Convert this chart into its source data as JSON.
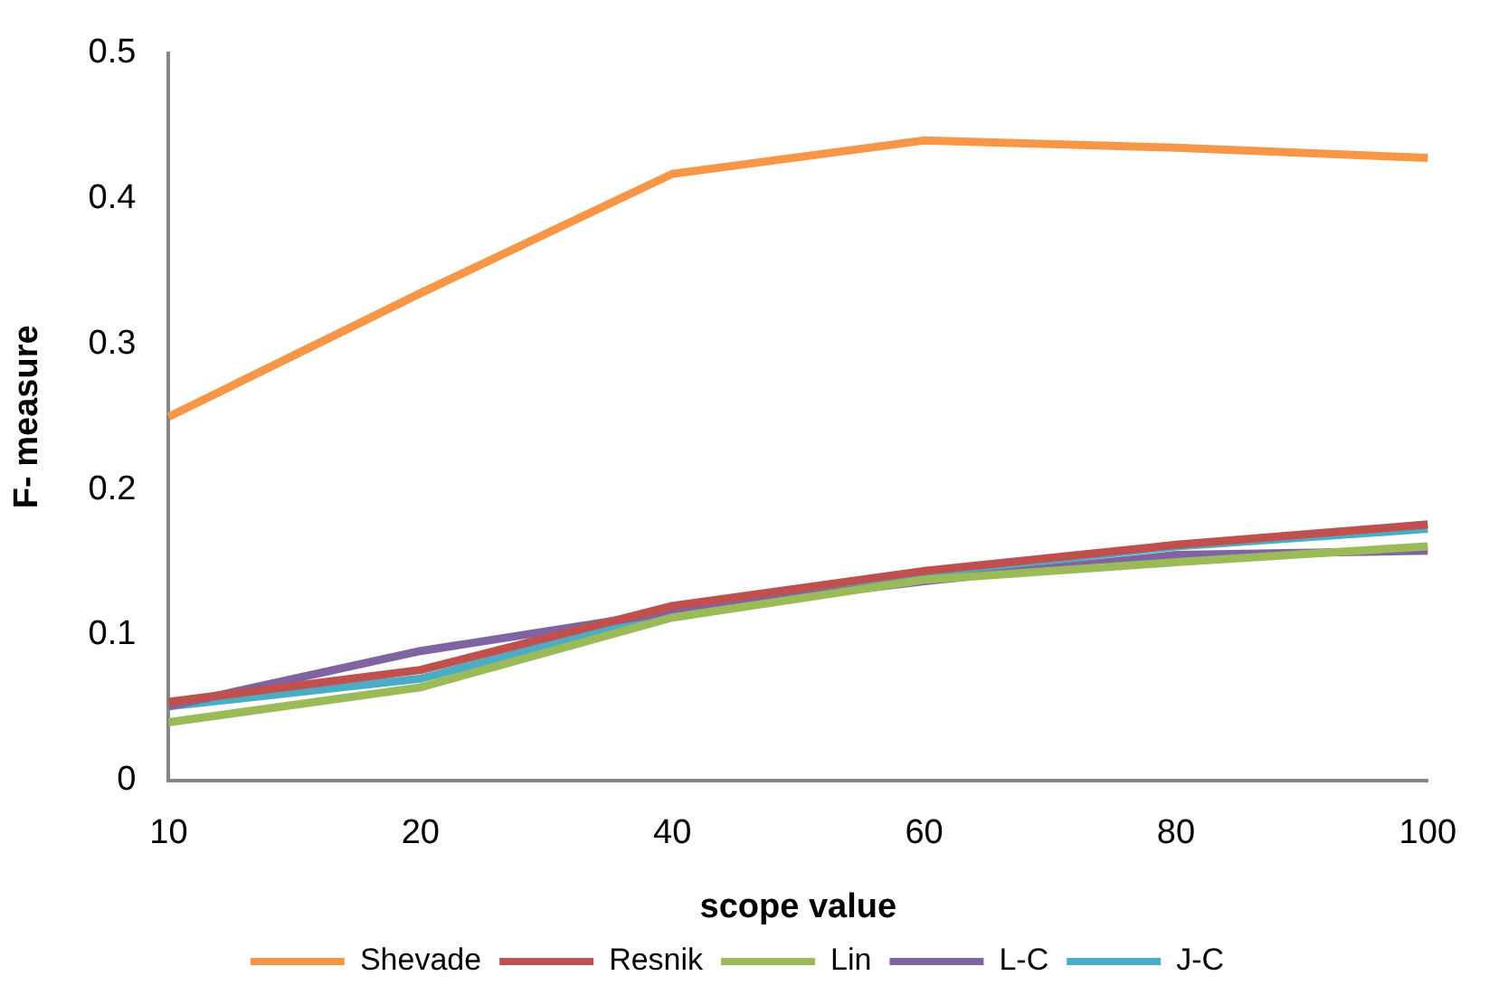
{
  "chart_data": {
    "type": "line",
    "xlabel": "scope value",
    "ylabel": "F- measure",
    "categories": [
      "10",
      "20",
      "40",
      "60",
      "80",
      "100"
    ],
    "series": [
      {
        "name": "Shevade",
        "color": "#f79646",
        "values": [
          0.25,
          0.335,
          0.417,
          0.44,
          0.435,
          0.428
        ]
      },
      {
        "name": "Resnik",
        "color": "#c0504d",
        "values": [
          0.054,
          0.076,
          0.12,
          0.144,
          0.162,
          0.176
        ]
      },
      {
        "name": "Lin",
        "color": "#9bbb59",
        "values": [
          0.04,
          0.064,
          0.112,
          0.138,
          0.15,
          0.161
        ]
      },
      {
        "name": "L-C",
        "color": "#8064a2",
        "values": [
          0.051,
          0.089,
          0.116,
          0.137,
          0.155,
          0.158
        ]
      },
      {
        "name": "J-C",
        "color": "#4bacc6",
        "values": [
          0.051,
          0.07,
          0.115,
          0.142,
          0.161,
          0.173
        ]
      }
    ],
    "ylim": [
      0,
      0.5
    ],
    "yticks": [
      0,
      0.1,
      0.2,
      0.3,
      0.4,
      0.5
    ],
    "grid": false,
    "legend": "bottom",
    "marker": "none",
    "line_style": "solid"
  }
}
